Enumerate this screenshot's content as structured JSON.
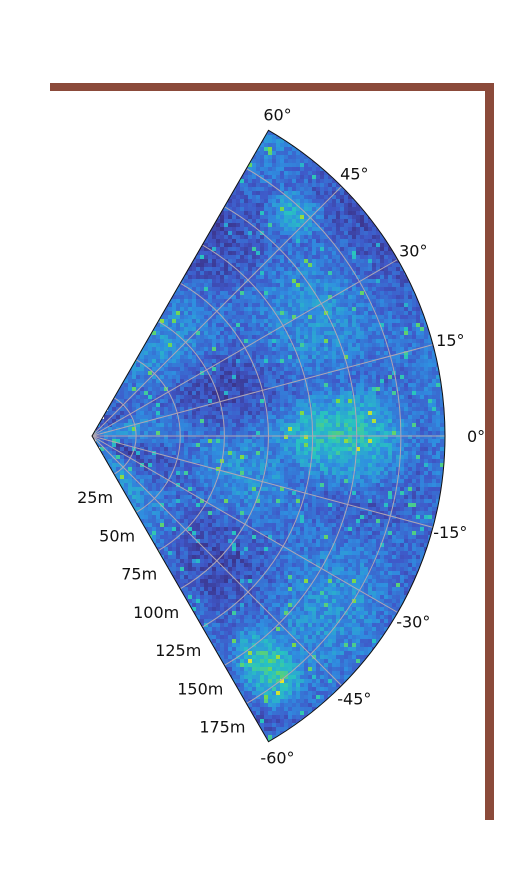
{
  "colors": {
    "frame": "#8b4a3a",
    "grid": "#b0a6b4",
    "outline": "#111111",
    "colormap": [
      "#3a2a7a",
      "#3f58c8",
      "#2f8ee0",
      "#28c4c0",
      "#7ad948",
      "#e6e62e"
    ]
  },
  "chart_data": {
    "type": "heatmap",
    "projection": "polar-sector",
    "title": "",
    "xlabel": "",
    "ylabel": "",
    "theta_range_deg": [
      -60,
      60
    ],
    "r_range_m": [
      0,
      200
    ],
    "angle_ticks": [
      {
        "value": -60,
        "label": "-60°"
      },
      {
        "value": -45,
        "label": "-45°"
      },
      {
        "value": -30,
        "label": "-30°"
      },
      {
        "value": -15,
        "label": "-15°"
      },
      {
        "value": 0,
        "label": "0°"
      },
      {
        "value": 15,
        "label": "15°"
      },
      {
        "value": 30,
        "label": "30°"
      },
      {
        "value": 45,
        "label": "45°"
      },
      {
        "value": 60,
        "label": "60°"
      }
    ],
    "radial_ticks": [
      {
        "value": 25,
        "label": "25m"
      },
      {
        "value": 50,
        "label": "50m"
      },
      {
        "value": 75,
        "label": "75m"
      },
      {
        "value": 100,
        "label": "100m"
      },
      {
        "value": 125,
        "label": "125m"
      },
      {
        "value": 150,
        "label": "150m"
      },
      {
        "value": 175,
        "label": "175m"
      }
    ],
    "grid": true,
    "colorbar": false,
    "intensity_description_by_region": [
      {
        "theta_deg": [
          -60,
          -45
        ],
        "r_m": [
          130,
          200
        ],
        "level": 0.65
      },
      {
        "theta_deg": [
          -15,
          15
        ],
        "r_m": [
          80,
          200
        ],
        "level": 0.6
      },
      {
        "theta_deg": [
          40,
          55
        ],
        "r_m": [
          150,
          190
        ],
        "level": 0.5
      },
      {
        "theta_deg": [
          -45,
          45
        ],
        "r_m": [
          0,
          80
        ],
        "level": 0.25
      }
    ]
  }
}
